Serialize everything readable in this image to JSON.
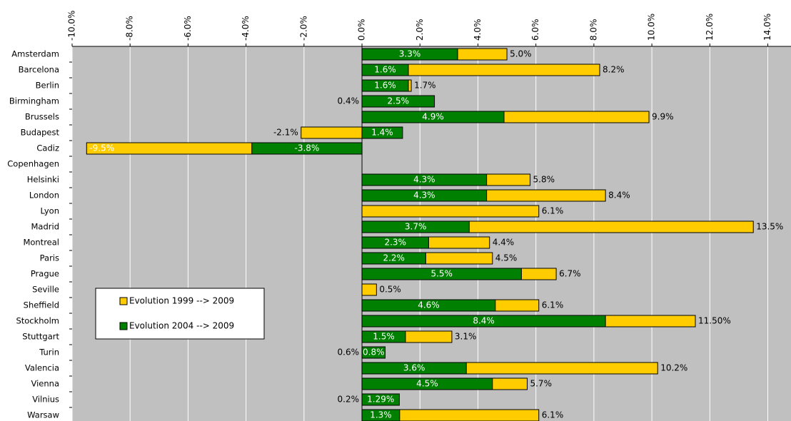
{
  "chart_data": {
    "type": "overlapping-bar",
    "categories": [
      "Amsterdam",
      "Barcelona",
      "Berlin",
      "Birmingham",
      "Brussels",
      "Budapest",
      "Cadiz",
      "Copenhagen",
      "Helsinki",
      "London",
      "Lyon",
      "Madrid",
      "Montreal",
      "Paris",
      "Prague",
      "Seville",
      "Sheffield",
      "Stockholm",
      "Stuttgart",
      "Turin",
      "Valencia",
      "Vienna",
      "Vilnius",
      "Warsaw"
    ],
    "series": [
      {
        "name": "Evolution 1999 --> 2009",
        "color": "#ffcc00",
        "values": [
          5.0,
          8.2,
          1.7,
          0.4,
          9.9,
          -2.1,
          -9.5,
          null,
          5.8,
          8.4,
          6.1,
          13.5,
          4.4,
          4.5,
          6.7,
          0.5,
          6.1,
          11.5,
          3.1,
          0.6,
          10.2,
          5.7,
          0.2,
          6.1
        ],
        "value_labels": [
          "5.0%",
          "8.2%",
          "1.7%",
          "0.4%",
          "9.9%",
          "-2.1%",
          "-9.5%",
          null,
          "5.8%",
          "8.4%",
          "6.1%",
          "13.5%",
          "4.4%",
          "4.5%",
          "6.7%",
          "0.5%",
          "6.1%",
          "11.50%",
          "3.1%",
          "0.6%",
          "10.2%",
          "5.7%",
          "0.2%",
          "6.1%"
        ]
      },
      {
        "name": "Evolution 2004 --> 2009",
        "color": "#008000",
        "values": [
          3.3,
          1.6,
          1.6,
          2.5,
          4.9,
          1.4,
          -3.8,
          null,
          4.3,
          4.3,
          null,
          3.7,
          2.3,
          2.2,
          5.5,
          null,
          4.6,
          8.4,
          1.5,
          0.8,
          3.6,
          4.5,
          1.29,
          1.3
        ],
        "value_labels": [
          "3.3%",
          "1.6%",
          "1.6%",
          "2.5%",
          "4.9%",
          "1.4%",
          "-3.8%",
          null,
          "4.3%",
          "4.3%",
          null,
          "3.7%",
          "2.3%",
          "2.2%",
          "5.5%",
          null,
          "4.6%",
          "8.4%",
          "1.5%",
          "0.8%",
          "3.6%",
          "4.5%",
          "1.29%",
          "1.3%"
        ]
      }
    ],
    "xlim": [
      -10,
      14.8
    ],
    "xticks": [
      {
        "value": -10,
        "label": "-10.0%"
      },
      {
        "value": -8,
        "label": "-8.0%"
      },
      {
        "value": -6,
        "label": "-6.0%"
      },
      {
        "value": -4,
        "label": "-4.0%"
      },
      {
        "value": -2,
        "label": "-2.0%"
      },
      {
        "value": 0,
        "label": "0.0%"
      },
      {
        "value": 2,
        "label": "2.0%"
      },
      {
        "value": 4,
        "label": "4.0%"
      },
      {
        "value": 6,
        "label": "6.0%"
      },
      {
        "value": 8,
        "label": "8.0%"
      },
      {
        "value": 10,
        "label": "10.0%"
      },
      {
        "value": 12,
        "label": "12.0%"
      },
      {
        "value": 14,
        "label": "14.0%"
      }
    ],
    "grid": true,
    "legend": "lower-left"
  }
}
